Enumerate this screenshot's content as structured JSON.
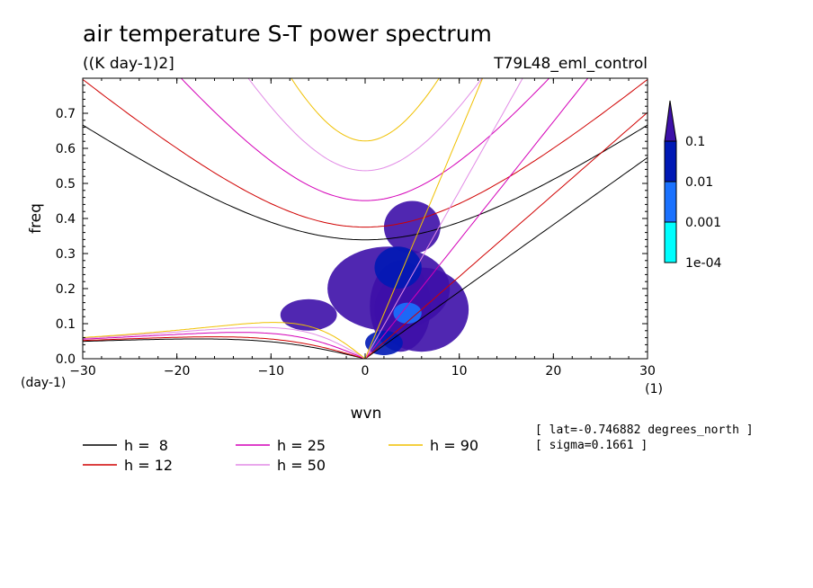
{
  "figure": {
    "title": "air temperature S-T power spectrum",
    "units": "((K day-1)2]",
    "experiment": "T79L48_eml_control",
    "lat_note": "[ lat=-0.746882 degrees_north ]",
    "sigma_note": "[ sigma=0.1661 ]",
    "x_unit_label": "(1)",
    "y_unit_label": "(day-1)"
  },
  "colorbar": {
    "labels": [
      "0.1",
      "0.01",
      "0.001",
      "1e-04"
    ],
    "colors": [
      "#3d10a8",
      "#0019b5",
      "#1a72ff",
      "#00ffff"
    ]
  },
  "chart_data": {
    "type": "heatmap",
    "xlabel": "wvn",
    "ylabel": "freq",
    "xlim": [
      -30,
      30
    ],
    "ylim": [
      0,
      0.8
    ],
    "xticks": [
      -30,
      -20,
      -10,
      0,
      10,
      20,
      30
    ],
    "yticks": [
      0,
      0.1,
      0.2,
      0.3,
      0.4,
      0.5,
      0.6,
      0.7
    ],
    "ytick_labels": [
      "0.0",
      "0.1",
      "0.2",
      "0.3",
      "0.4",
      "0.5",
      "0.6",
      "0.7"
    ],
    "series": [
      {
        "name": "h =  8",
        "color": "#000000",
        "equivalent_depth": 8
      },
      {
        "name": "h = 12",
        "color": "#d00000",
        "equivalent_depth": 12
      },
      {
        "name": "h = 25",
        "color": "#d400b8",
        "equivalent_depth": 25
      },
      {
        "name": "h = 50",
        "color": "#e28ce6",
        "equivalent_depth": 50
      },
      {
        "name": "h = 90",
        "color": "#f0c000",
        "equivalent_depth": 90
      }
    ],
    "power_patches": [
      {
        "x": [
          0.5,
          7
        ],
        "y": [
          0.02,
          0.28
        ],
        "level": 4
      },
      {
        "x": [
          -4,
          9
        ],
        "y": [
          0.08,
          0.32
        ],
        "level": 4
      },
      {
        "x": [
          1,
          11
        ],
        "y": [
          0.02,
          0.26
        ],
        "level": 4
      },
      {
        "x": [
          -9,
          -3
        ],
        "y": [
          0.08,
          0.17
        ],
        "level": 4
      },
      {
        "x": [
          2,
          8
        ],
        "y": [
          0.3,
          0.45
        ],
        "level": 4
      },
      {
        "x": [
          1,
          6
        ],
        "y": [
          0.2,
          0.32
        ],
        "level": 3
      },
      {
        "x": [
          0,
          4
        ],
        "y": [
          0.01,
          0.08
        ],
        "level": 3
      },
      {
        "x": [
          3,
          6
        ],
        "y": [
          0.1,
          0.16
        ],
        "level": 2
      }
    ]
  },
  "legend": {
    "items": [
      {
        "label": "h =  8",
        "color": "#000000"
      },
      {
        "label": "h = 12",
        "color": "#d00000"
      },
      {
        "label": "h = 25",
        "color": "#d400b8"
      },
      {
        "label": "h = 50",
        "color": "#e28ce6"
      },
      {
        "label": "h = 90",
        "color": "#f0c000"
      }
    ]
  }
}
